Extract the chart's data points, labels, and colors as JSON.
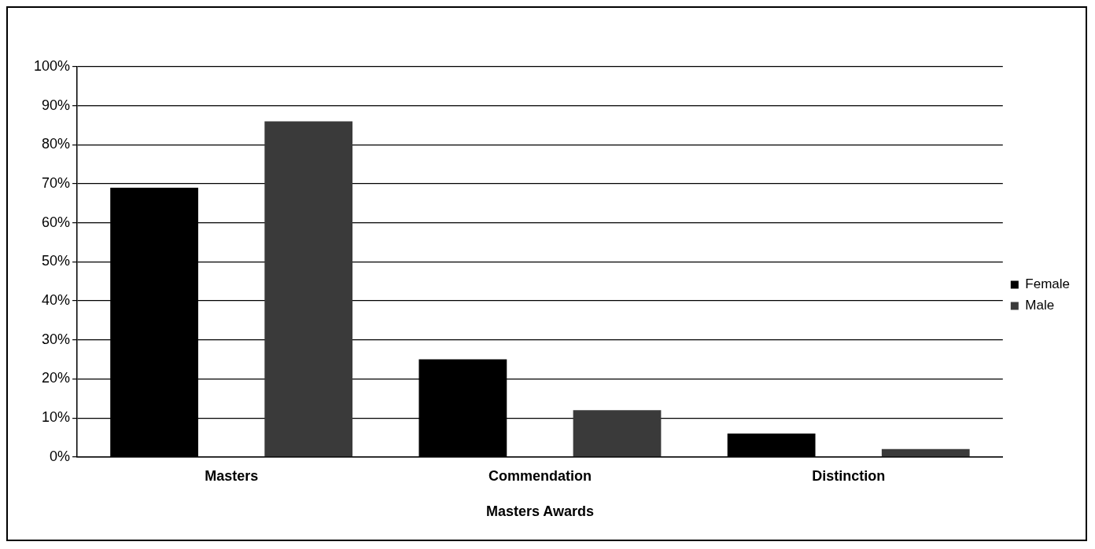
{
  "chart_data": {
    "type": "bar",
    "xlabel": "Masters Awards",
    "categories": [
      "Masters",
      "Commendation",
      "Distinction"
    ],
    "series": [
      {
        "name": "Female",
        "color": "#000000",
        "values": [
          69,
          25,
          6
        ]
      },
      {
        "name": "Male",
        "color": "#3a3a3a",
        "values": [
          86,
          12,
          2
        ]
      }
    ],
    "ylim": [
      0,
      100
    ],
    "yticks": [
      {
        "value": 0,
        "label": "0%"
      },
      {
        "value": 10,
        "label": "10%"
      },
      {
        "value": 20,
        "label": "20%"
      },
      {
        "value": 30,
        "label": "30%"
      },
      {
        "value": 40,
        "label": "40%"
      },
      {
        "value": 50,
        "label": "50%"
      },
      {
        "value": 60,
        "label": "60%"
      },
      {
        "value": 70,
        "label": "70%"
      },
      {
        "value": 80,
        "label": "80%"
      },
      {
        "value": 90,
        "label": "90%"
      },
      {
        "value": 100,
        "label": "100%"
      }
    ],
    "grid": "y",
    "legend": "right"
  }
}
